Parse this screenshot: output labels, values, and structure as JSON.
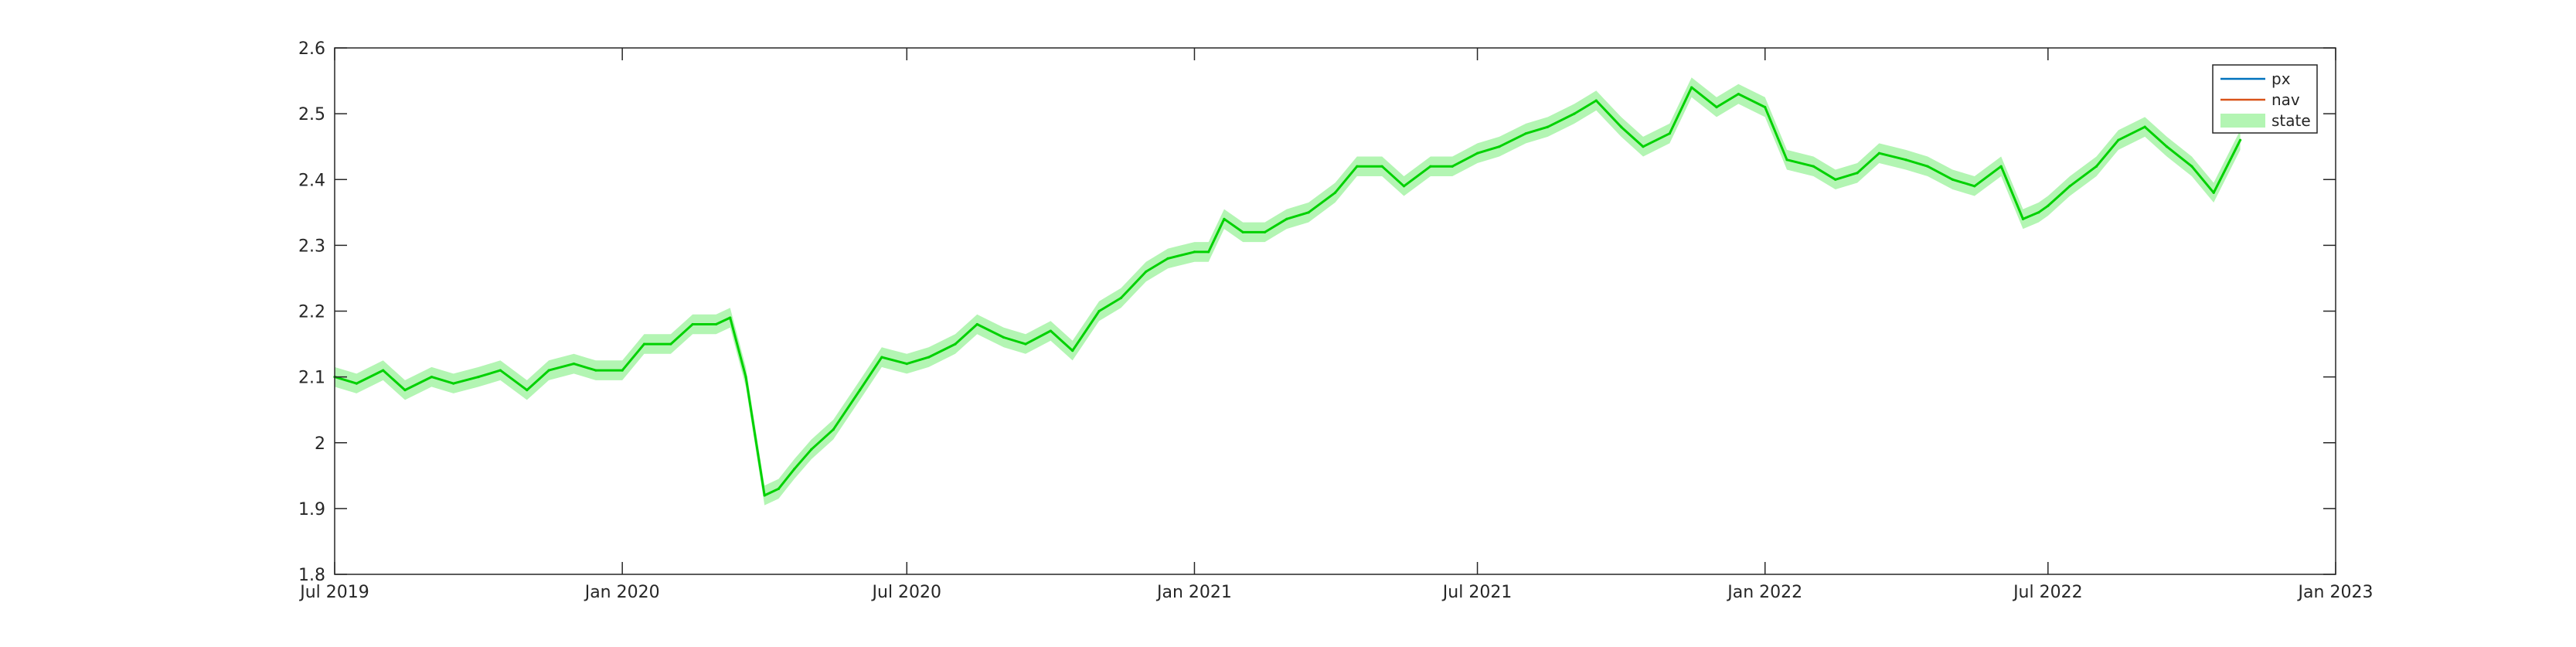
{
  "chart_data": {
    "type": "line",
    "title": "",
    "xlabel": "",
    "ylabel": "",
    "xlim": [
      "2019-07-01",
      "2023-01-01"
    ],
    "ylim": [
      1.8,
      2.6
    ],
    "y_ticks": [
      1.8,
      1.9,
      2.0,
      2.1,
      2.2,
      2.3,
      2.4,
      2.5,
      2.6
    ],
    "y_tick_labels": [
      "1.8",
      "1.9",
      "2",
      "2.1",
      "2.2",
      "2.3",
      "2.4",
      "2.5",
      "2.6"
    ],
    "x_ticks": [
      "2019-07-01",
      "2020-01-01",
      "2020-07-01",
      "2021-01-01",
      "2021-07-01",
      "2022-01-01",
      "2022-07-01",
      "2023-01-01"
    ],
    "x_tick_labels": [
      "Jul 2019",
      "Jan 2020",
      "Jul 2020",
      "Jan 2021",
      "Jul 2021",
      "Jan 2022",
      "Jul 2022",
      "Jan 2023"
    ],
    "grid": false,
    "legend": {
      "placement": "top-right",
      "entries": [
        {
          "name": "px",
          "color": "#0072BD",
          "kind": "line"
        },
        {
          "name": "nav",
          "color": "#D95319",
          "kind": "line"
        },
        {
          "name": "state",
          "color": "#B3F5B3",
          "kind": "band"
        }
      ]
    },
    "colors": {
      "state_line": "#00D100",
      "state_band": "#B3F5B3",
      "px_line": "#0072BD",
      "nav_line": "#D95319"
    },
    "series": [
      {
        "name": "state",
        "band_halfwidth": 0.015,
        "x": [
          "2019-07-01",
          "2019-07-15",
          "2019-08-01",
          "2019-08-15",
          "2019-09-01",
          "2019-09-15",
          "2019-10-01",
          "2019-10-15",
          "2019-11-01",
          "2019-11-15",
          "2019-12-01",
          "2019-12-15",
          "2020-01-01",
          "2020-01-15",
          "2020-02-01",
          "2020-02-15",
          "2020-03-01",
          "2020-03-10",
          "2020-03-20",
          "2020-04-01",
          "2020-04-10",
          "2020-04-20",
          "2020-05-01",
          "2020-05-15",
          "2020-06-01",
          "2020-06-15",
          "2020-07-01",
          "2020-07-15",
          "2020-08-01",
          "2020-08-15",
          "2020-09-01",
          "2020-09-15",
          "2020-10-01",
          "2020-10-15",
          "2020-11-01",
          "2020-11-15",
          "2020-12-01",
          "2020-12-15",
          "2021-01-01",
          "2021-01-10",
          "2021-01-20",
          "2021-02-01",
          "2021-02-15",
          "2021-03-01",
          "2021-03-15",
          "2021-04-01",
          "2021-04-15",
          "2021-05-01",
          "2021-05-15",
          "2021-06-01",
          "2021-06-15",
          "2021-07-01",
          "2021-07-15",
          "2021-08-01",
          "2021-08-15",
          "2021-09-01",
          "2021-09-15",
          "2021-10-01",
          "2021-10-15",
          "2021-11-01",
          "2021-11-15",
          "2021-12-01",
          "2021-12-15",
          "2022-01-01",
          "2022-01-15",
          "2022-02-01",
          "2022-02-15",
          "2022-03-01",
          "2022-03-15",
          "2022-04-01",
          "2022-04-15",
          "2022-05-01",
          "2022-05-15",
          "2022-06-01",
          "2022-06-15",
          "2022-06-25",
          "2022-07-01",
          "2022-07-15",
          "2022-08-01",
          "2022-08-15",
          "2022-09-01",
          "2022-09-15",
          "2022-10-01",
          "2022-10-15",
          "2022-11-01"
        ],
        "values": [
          2.1,
          2.09,
          2.11,
          2.08,
          2.1,
          2.09,
          2.1,
          2.11,
          2.08,
          2.11,
          2.12,
          2.11,
          2.11,
          2.15,
          2.15,
          2.18,
          2.18,
          2.19,
          2.1,
          1.92,
          1.93,
          1.96,
          1.99,
          2.02,
          2.08,
          2.13,
          2.12,
          2.13,
          2.15,
          2.18,
          2.16,
          2.15,
          2.17,
          2.14,
          2.2,
          2.22,
          2.26,
          2.28,
          2.29,
          2.29,
          2.34,
          2.32,
          2.32,
          2.34,
          2.35,
          2.38,
          2.42,
          2.42,
          2.39,
          2.42,
          2.42,
          2.44,
          2.45,
          2.47,
          2.48,
          2.5,
          2.52,
          2.48,
          2.45,
          2.47,
          2.54,
          2.51,
          2.53,
          2.51,
          2.43,
          2.42,
          2.4,
          2.41,
          2.44,
          2.43,
          2.42,
          2.4,
          2.39,
          2.42,
          2.34,
          2.35,
          2.36,
          2.39,
          2.42,
          2.46,
          2.48,
          2.45,
          2.42,
          2.38,
          2.46
        ]
      }
    ]
  }
}
